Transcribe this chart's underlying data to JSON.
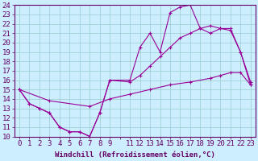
{
  "xlabel": "Windchill (Refroidissement éolien,°C)",
  "bg_color": "#cceeff",
  "line_color": "#990099",
  "grid_color": "#99cccc",
  "x_min": -0.5,
  "x_max": 23.5,
  "y_min": 10,
  "y_max": 24,
  "line1_x": [
    0,
    1,
    2,
    3,
    4,
    5,
    6,
    7,
    8,
    9,
    11,
    12,
    13,
    14,
    15,
    16,
    17,
    18,
    19,
    20,
    21,
    22,
    23
  ],
  "line1_y": [
    15.0,
    13.5,
    13.0,
    12.5,
    11.0,
    10.5,
    10.5,
    10.0,
    12.5,
    16.0,
    16.0,
    19.5,
    21.0,
    19.0,
    23.2,
    23.8,
    24.0,
    21.5,
    21.0,
    21.5,
    21.5,
    19.0,
    15.8
  ],
  "line2_x": [
    0,
    1,
    2,
    3,
    4,
    5,
    6,
    7,
    8,
    9,
    11,
    12,
    13,
    14,
    15,
    16,
    17,
    18,
    19,
    20,
    21,
    22,
    23
  ],
  "line2_y": [
    15.0,
    13.5,
    13.0,
    12.5,
    11.0,
    10.5,
    10.5,
    10.0,
    12.5,
    16.0,
    15.8,
    16.5,
    17.5,
    18.5,
    19.5,
    20.5,
    21.0,
    21.5,
    21.8,
    21.5,
    21.3,
    19.0,
    15.5
  ],
  "line3_x": [
    0,
    3,
    7,
    9,
    11,
    13,
    15,
    17,
    19,
    20,
    21,
    22,
    23
  ],
  "line3_y": [
    15.0,
    13.8,
    13.2,
    14.0,
    14.5,
    15.0,
    15.5,
    15.8,
    16.2,
    16.5,
    16.8,
    16.8,
    15.5
  ],
  "yticks": [
    10,
    11,
    12,
    13,
    14,
    15,
    16,
    17,
    18,
    19,
    20,
    21,
    22,
    23,
    24
  ],
  "xtick_labels": [
    "0",
    "1",
    "2",
    "3",
    "4",
    "5",
    "6",
    "7",
    "8",
    "9",
    "",
    "11",
    "12",
    "13",
    "14",
    "15",
    "16",
    "17",
    "18",
    "19",
    "20",
    "21",
    "22",
    "23"
  ],
  "font_color": "#660066",
  "font_size": 6.5
}
